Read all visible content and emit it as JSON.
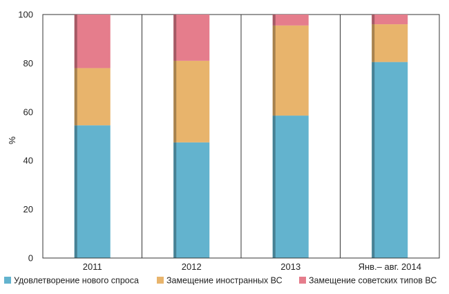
{
  "chart_data": {
    "type": "bar",
    "stacked": true,
    "percent": true,
    "categories": [
      "2011",
      "2012",
      "2013",
      "Янв.– авг. 2014"
    ],
    "series": [
      {
        "name": "Удовлетворение нового спроса",
        "color": "#63b3ce",
        "values": [
          54.5,
          47.5,
          58.5,
          80.5
        ]
      },
      {
        "name": "Замещение иностранных ВС",
        "color": "#e8b46c",
        "values": [
          23.5,
          33.5,
          37,
          15.5
        ]
      },
      {
        "name": "Замещение советских типов ВС",
        "color": "#e57d8c",
        "values": [
          22,
          19,
          4.5,
          4
        ]
      }
    ],
    "title": "",
    "xlabel": "",
    "ylabel": "%",
    "ylim": [
      0,
      100
    ],
    "yticks": [
      "0",
      "20",
      "40",
      "60",
      "80",
      "100"
    ],
    "grid": "vertical separators between categories",
    "legend_position": "bottom"
  }
}
